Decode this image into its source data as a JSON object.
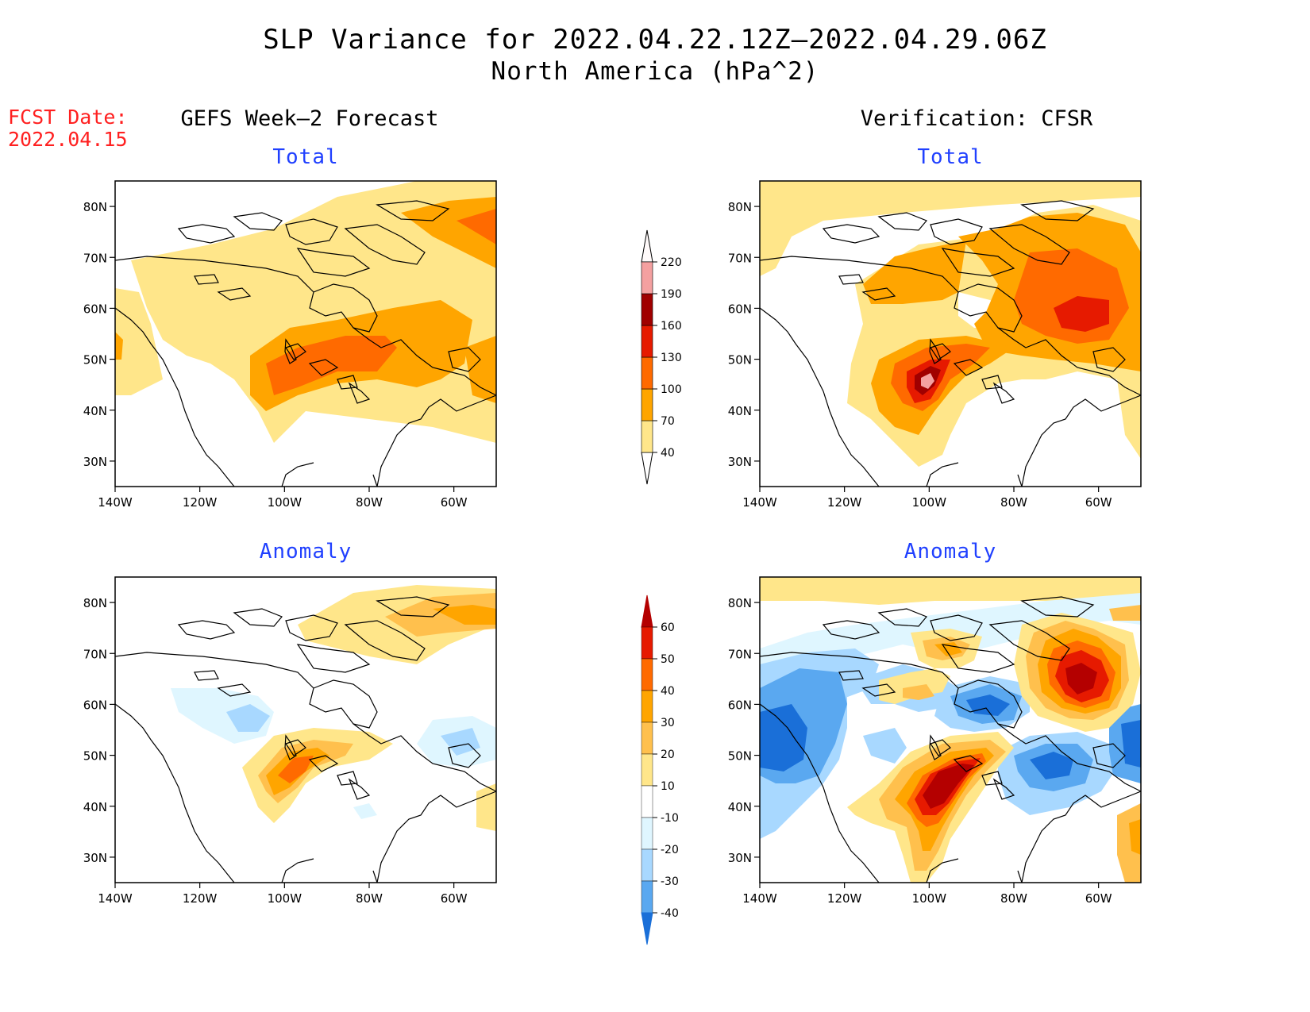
{
  "header": {
    "title": "SLP Variance for 2022.04.22.12Z–2022.04.29.06Z",
    "subtitle": "North America (hPa^2)"
  },
  "fcst_date": {
    "label": "FCST Date:",
    "value": "2022.04.15"
  },
  "columns": {
    "left": "GEFS Week–2 Forecast",
    "right": "Verification: CFSR"
  },
  "panels": {
    "forecast_total": {
      "title": "Total"
    },
    "forecast_anomaly": {
      "title": "Anomaly"
    },
    "verification_total": {
      "title": "Total"
    },
    "verification_anomaly": {
      "title": "Anomaly"
    }
  },
  "axes": {
    "lat_labels": [
      "80N",
      "70N",
      "60N",
      "50N",
      "40N",
      "30N"
    ],
    "lon_labels": [
      "140W",
      "120W",
      "100W",
      "80W",
      "60W"
    ]
  },
  "colorbars": {
    "total": {
      "levels": [
        "40",
        "70",
        "100",
        "130",
        "160",
        "190",
        "220"
      ],
      "colors": [
        "#ffe68a",
        "#ffa500",
        "#ff6a00",
        "#e61a00",
        "#a00000",
        "#f4a0a0",
        "#fde2e2"
      ]
    },
    "anomaly": {
      "levels": [
        "60",
        "50",
        "40",
        "30",
        "20",
        "10",
        "-10",
        "-20",
        "-30",
        "-40"
      ],
      "colors": [
        "#b40000",
        "#e61a00",
        "#ff6a00",
        "#ffa500",
        "#ffc04d",
        "#ffe68a",
        "#ffffff",
        "#dff6ff",
        "#a8d8ff",
        "#5aa8f0",
        "#1a6fd8"
      ]
    }
  }
}
